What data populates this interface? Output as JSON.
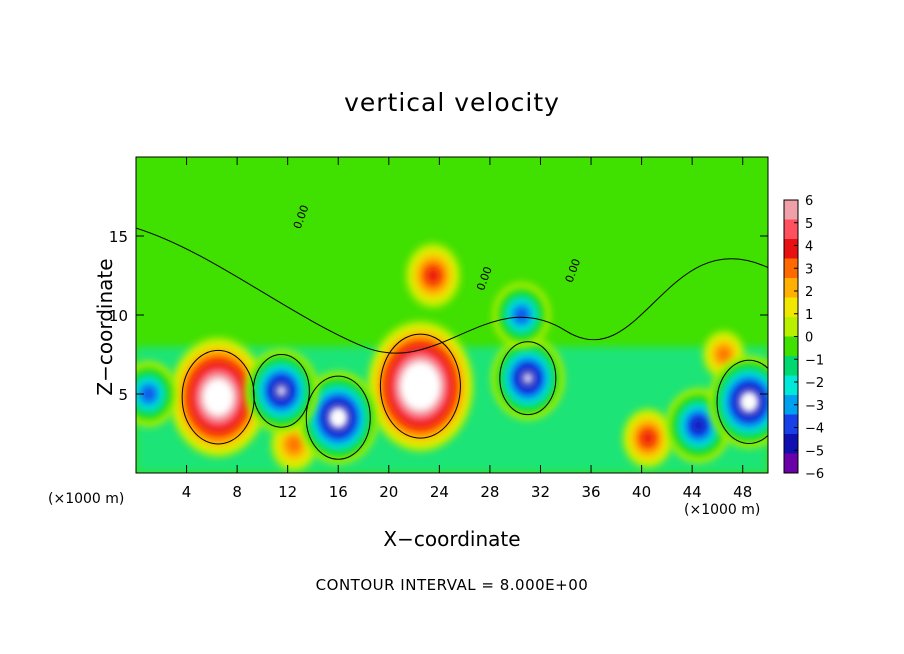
{
  "chart_data": {
    "type": "heatmap",
    "title": "vertical velocity",
    "xlabel": "X−coordinate",
    "ylabel": "Z−coordinate",
    "x_unit_label": "(×1000 m)",
    "y_unit_label": "(×1000 m)",
    "xlim": [
      0,
      50
    ],
    "ylim": [
      0,
      20
    ],
    "x_ticks": [
      4,
      8,
      12,
      16,
      20,
      24,
      28,
      32,
      36,
      40,
      44,
      48
    ],
    "x_tick_labels": [
      "4",
      "8",
      "12",
      "16",
      "20",
      "24",
      "28",
      "32",
      "36",
      "40",
      "44",
      "48"
    ],
    "y_ticks": [
      5,
      10,
      15
    ],
    "y_tick_labels": [
      "5",
      "10",
      "15"
    ],
    "colorbar": {
      "ticks": [
        6,
        5,
        4,
        3,
        2,
        1,
        0,
        -1,
        -2,
        -3,
        -4,
        -5,
        -6
      ],
      "tick_labels": [
        "6",
        "5",
        "4",
        "3",
        "2",
        "1",
        "0",
        "−1",
        "−2",
        "−3",
        "−4",
        "−5",
        "−6"
      ],
      "colors": [
        "#f0a0a8",
        "#ff5060",
        "#e81010",
        "#ff6a00",
        "#ffb000",
        "#f0e800",
        "#b8f000",
        "#40e000",
        "#00d870",
        "#00e8d8",
        "#00a0f0",
        "#1840e8",
        "#1010b0",
        "#6a00a8"
      ]
    },
    "contour_interval_text": "CONTOUR INTERVAL = 8.000E+00",
    "contour_labels": [
      "0.00",
      "0.00",
      "0.00"
    ],
    "features": [
      {
        "x": 6.5,
        "z": 4.8,
        "value": 9,
        "sign": "up"
      },
      {
        "x": 22.5,
        "z": 5.5,
        "value": 10,
        "sign": "up"
      },
      {
        "x": 23.5,
        "z": 12.5,
        "value": 4,
        "sign": "up"
      },
      {
        "x": 40.5,
        "z": 2.2,
        "value": 3.5,
        "sign": "up"
      },
      {
        "x": 12.5,
        "z": 1.8,
        "value": 3,
        "sign": "up"
      },
      {
        "x": 46.5,
        "z": 7.5,
        "value": 2.5,
        "sign": "up"
      },
      {
        "x": 16,
        "z": 3.5,
        "value": -8,
        "sign": "down"
      },
      {
        "x": 11.5,
        "z": 5.2,
        "value": -7,
        "sign": "down"
      },
      {
        "x": 31,
        "z": 6,
        "value": -7,
        "sign": "down"
      },
      {
        "x": 30.5,
        "z": 10,
        "value": -5,
        "sign": "down"
      },
      {
        "x": 44.5,
        "z": 3,
        "value": -6,
        "sign": "down"
      },
      {
        "x": 48.5,
        "z": 4.5,
        "value": -8,
        "sign": "down"
      },
      {
        "x": 1,
        "z": 5,
        "value": -5,
        "sign": "down"
      }
    ]
  }
}
